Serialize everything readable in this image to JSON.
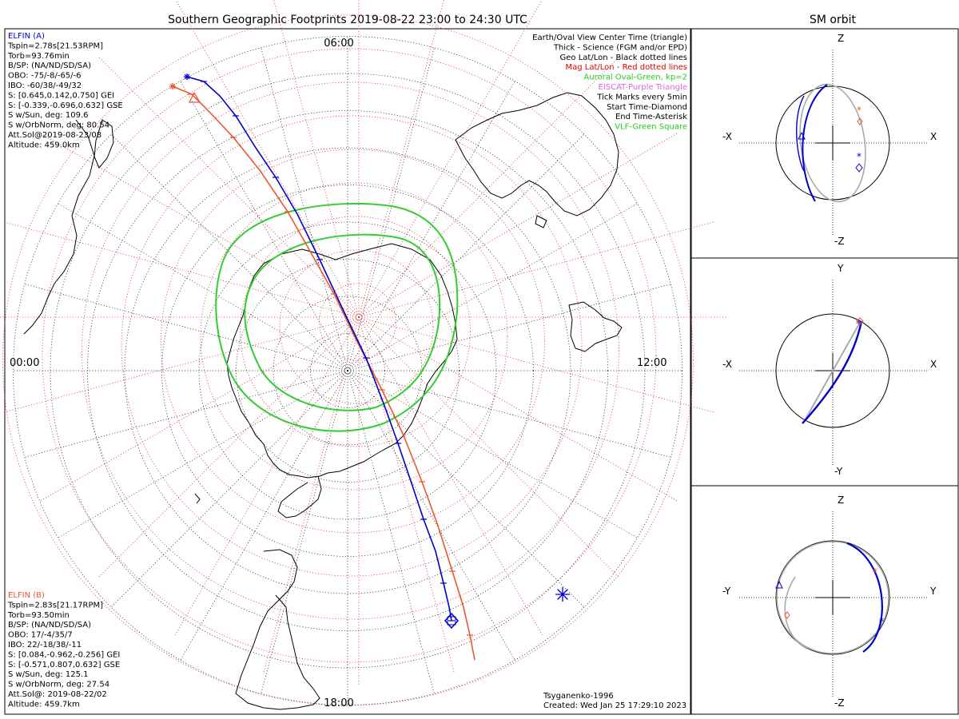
{
  "title": "Southern Geographic Footprints 2019-08-22 23:00 to 24:30 UTC",
  "sm_title": "SM orbit",
  "time_labels": {
    "top": "06:00",
    "left": "00:00",
    "right": "12:00",
    "bottom": "18:00"
  },
  "legend": [
    {
      "text": "Earth/Oval View Center Time (triangle)",
      "color": "#000000"
    },
    {
      "text": "Thick - Science (FGM and/or EPD)",
      "color": "#000000"
    },
    {
      "text": "Geo Lat/Lon - Black dotted lines",
      "color": "#000000"
    },
    {
      "text": "Mag Lat/Lon - Red dotted lines",
      "color": "#e00000"
    },
    {
      "text": "Auroral Oval-Green, kp=2",
      "color": "#22cc22"
    },
    {
      "text": "EISCAT-Purple Triangle",
      "color": "#dd66dd"
    },
    {
      "text": "Tick Marks every 5min",
      "color": "#000000"
    },
    {
      "text": "Start Time-Diamond",
      "color": "#000000"
    },
    {
      "text": "End Time-Asterisk",
      "color": "#000000"
    },
    {
      "text": "VLF-Green Square",
      "color": "#22cc22"
    }
  ],
  "elfin_a": {
    "name": "ELFIN (A)",
    "color": "#0000cc",
    "lines": [
      "Tspin=2.78s[21.53RPM]",
      "Torb=93.76min",
      "B/SP: (NA/ND/SD/SA)",
      "OBO: -75/-8/-65/-6",
      "IBO: -60/38/-49/32",
      "S: [0.645,0.142,0.750] GEI",
      "S: [-0.339,-0.696,0.632] GSE",
      "S w/Sun, deg: 109.6",
      "S w/OrbNorm, deg: 80.54",
      "Att.Sol@2019-08-23/08",
      "Altitude: 459.0km"
    ]
  },
  "elfin_b": {
    "name": "ELFIN (B)",
    "color": "#ee5533",
    "lines": [
      "Tspin=2.83s[21.17RPM]",
      "Torb=93.50min",
      "B/SP: (NA/ND/SD/SA)",
      "OBO: 17/-4/35/7",
      "IBO: 22/-18/38/-11",
      "S: [0.084,-0.962,-0.256] GEI",
      "S: [-0.571,0.807,0.632] GSE",
      "S w/Sun, deg: 125.1",
      "S w/OrbNorm, deg: 27.54",
      "Att.Sol@: 2019-08-22/02",
      "Altitude: 459.7km"
    ]
  },
  "credits": {
    "model": "Tsyganenko-1996",
    "created": "Created: Wed Jan 25 17:29:10 2023"
  },
  "sm_panels": [
    {
      "top": "Z",
      "bottom": "-Z",
      "left": "-X",
      "right": "X"
    },
    {
      "top": "Y",
      "bottom": "-Y",
      "left": "-X",
      "right": "X"
    },
    {
      "top": "Z",
      "bottom": "-Z",
      "left": "-Y",
      "right": "Y"
    }
  ],
  "colors": {
    "elfin_a": "#0000cc",
    "elfin_b": "#ee5533",
    "oval": "#33cc33",
    "geo_grid": "#000000",
    "mag_grid": "#e02020",
    "orbit_gray": "#aaaaaa"
  }
}
